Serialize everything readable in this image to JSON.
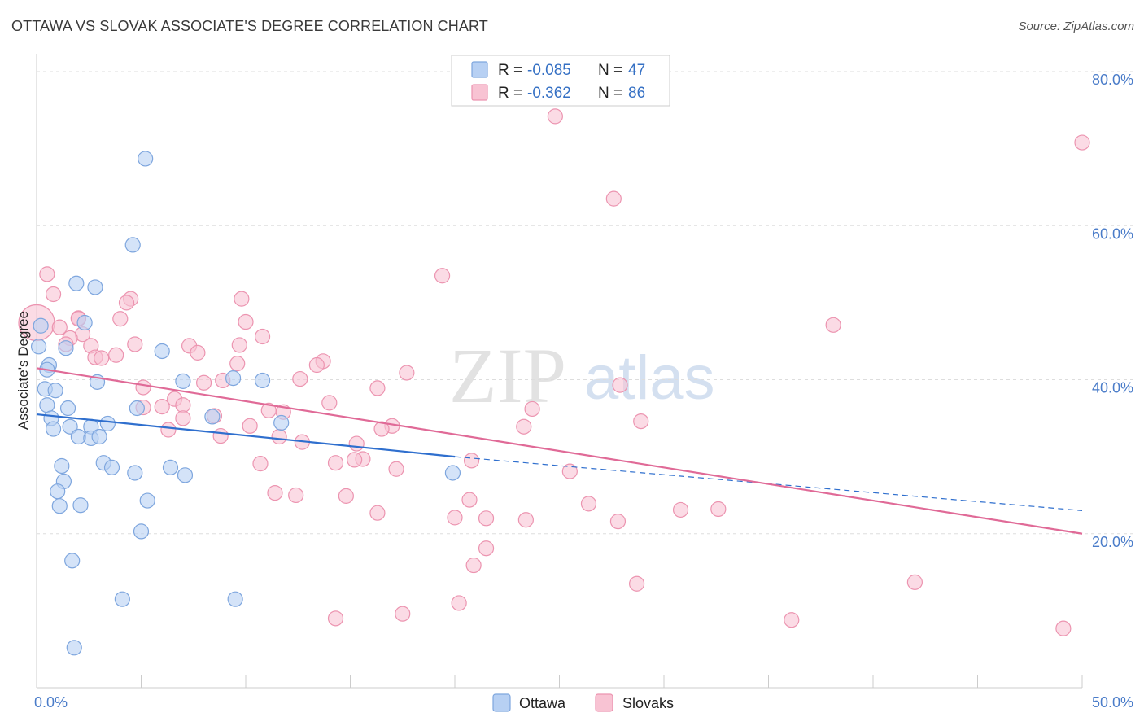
{
  "title": "OTTAWA VS SLOVAK ASSOCIATE'S DEGREE CORRELATION CHART",
  "source": "Source: ZipAtlas.com",
  "watermark": {
    "zip": "ZIP",
    "atlas": "atlas"
  },
  "colors": {
    "ottawa_fill": "#b7d0f3",
    "ottawa_stroke": "#7ea6de",
    "ottawa_line": "#2f6fce",
    "slovak_fill": "#f8c3d3",
    "slovak_stroke": "#ec94b0",
    "slovak_line": "#e06a97",
    "tick_blue": "#4a7cc9",
    "grid": "#dddddd"
  },
  "legend": {
    "rows": [
      {
        "r_label": "R =",
        "r_value": "-0.085",
        "n_label": "N =",
        "n_value": "47"
      },
      {
        "r_label": "R =",
        "r_value": "-0.362",
        "n_label": "N =",
        "n_value": "86"
      }
    ]
  },
  "chart_data": {
    "type": "scatter",
    "title": "OTTAWA VS SLOVAK ASSOCIATE'S DEGREE CORRELATION CHART",
    "xlabel": "",
    "ylabel": "Associate's Degree",
    "xlim": [
      0,
      50
    ],
    "ylim": [
      0,
      80
    ],
    "x_tick_labels": [
      "0.0%",
      "50.0%"
    ],
    "y_ticks": [
      20,
      40,
      60,
      80
    ],
    "y_tick_labels": [
      "20.0%",
      "40.0%",
      "60.0%",
      "80.0%"
    ],
    "grid": true,
    "legend_position": "bottom",
    "series": [
      {
        "name": "Ottawa",
        "R": -0.085,
        "N": 47,
        "trend": {
          "x0": 0,
          "y0": 35.5,
          "x1": 20,
          "y1": 30.0,
          "dashed_to_x": 50,
          "dashed_to_y": 23.0
        },
        "points": [
          [
            5.2,
            68.7
          ],
          [
            4.6,
            57.5
          ],
          [
            1.9,
            52.5
          ],
          [
            2.8,
            52.0
          ],
          [
            2.3,
            47.4
          ],
          [
            0.1,
            44.3
          ],
          [
            1.4,
            44.1
          ],
          [
            6.0,
            43.7
          ],
          [
            0.6,
            41.9
          ],
          [
            0.5,
            41.3
          ],
          [
            2.9,
            39.7
          ],
          [
            7.0,
            39.8
          ],
          [
            10.8,
            39.9
          ],
          [
            9.4,
            40.2
          ],
          [
            0.4,
            38.8
          ],
          [
            0.9,
            38.6
          ],
          [
            0.5,
            36.7
          ],
          [
            1.5,
            36.3
          ],
          [
            4.8,
            36.3
          ],
          [
            0.7,
            35.0
          ],
          [
            8.4,
            35.2
          ],
          [
            3.4,
            34.3
          ],
          [
            11.7,
            34.4
          ],
          [
            1.6,
            33.9
          ],
          [
            2.6,
            33.9
          ],
          [
            0.8,
            33.6
          ],
          [
            2.0,
            32.6
          ],
          [
            2.6,
            32.4
          ],
          [
            3.0,
            32.6
          ],
          [
            3.2,
            29.2
          ],
          [
            1.2,
            28.8
          ],
          [
            3.6,
            28.6
          ],
          [
            6.4,
            28.6
          ],
          [
            4.7,
            27.9
          ],
          [
            7.1,
            27.6
          ],
          [
            19.9,
            27.9
          ],
          [
            1.3,
            26.8
          ],
          [
            1.0,
            25.5
          ],
          [
            5.3,
            24.3
          ],
          [
            1.1,
            23.6
          ],
          [
            2.1,
            23.7
          ],
          [
            5.0,
            20.3
          ],
          [
            1.7,
            16.5
          ],
          [
            4.1,
            11.5
          ],
          [
            9.5,
            11.5
          ],
          [
            1.8,
            5.2
          ],
          [
            0.2,
            47.0
          ]
        ]
      },
      {
        "name": "Slovaks",
        "R": -0.362,
        "N": 86,
        "trend": {
          "x0": 0,
          "y0": 41.5,
          "x1": 50,
          "y1": 20.0
        },
        "points": [
          [
            24.8,
            74.2
          ],
          [
            50.0,
            70.8
          ],
          [
            27.6,
            63.5
          ],
          [
            19.4,
            53.5
          ],
          [
            0.5,
            53.7
          ],
          [
            0.8,
            51.1
          ],
          [
            4.5,
            50.5
          ],
          [
            4.3,
            50.0
          ],
          [
            2.0,
            48.0
          ],
          [
            4.0,
            47.9
          ],
          [
            10.0,
            47.5
          ],
          [
            38.1,
            47.1
          ],
          [
            0.0,
            47.4
          ],
          [
            1.1,
            46.8
          ],
          [
            2.2,
            45.9
          ],
          [
            1.6,
            45.4
          ],
          [
            10.8,
            45.6
          ],
          [
            1.4,
            44.6
          ],
          [
            2.6,
            44.4
          ],
          [
            4.7,
            44.6
          ],
          [
            7.3,
            44.4
          ],
          [
            9.7,
            44.5
          ],
          [
            7.7,
            43.5
          ],
          [
            2.8,
            42.9
          ],
          [
            3.1,
            42.8
          ],
          [
            3.8,
            43.2
          ],
          [
            13.7,
            42.4
          ],
          [
            9.6,
            42.1
          ],
          [
            13.4,
            41.9
          ],
          [
            17.7,
            40.9
          ],
          [
            8.9,
            39.9
          ],
          [
            12.6,
            40.1
          ],
          [
            8.0,
            39.6
          ],
          [
            16.3,
            38.9
          ],
          [
            5.1,
            39.0
          ],
          [
            27.9,
            39.3
          ],
          [
            6.6,
            37.5
          ],
          [
            5.1,
            36.4
          ],
          [
            6.0,
            36.5
          ],
          [
            7.0,
            36.7
          ],
          [
            14.0,
            37.0
          ],
          [
            23.7,
            36.2
          ],
          [
            11.1,
            36.0
          ],
          [
            11.8,
            35.8
          ],
          [
            8.5,
            35.3
          ],
          [
            7.0,
            35.0
          ],
          [
            28.9,
            34.6
          ],
          [
            17.0,
            34.0
          ],
          [
            16.5,
            33.6
          ],
          [
            10.2,
            34.0
          ],
          [
            6.3,
            33.5
          ],
          [
            23.3,
            33.9
          ],
          [
            8.8,
            32.7
          ],
          [
            11.6,
            32.6
          ],
          [
            12.7,
            31.9
          ],
          [
            15.3,
            31.7
          ],
          [
            15.6,
            29.7
          ],
          [
            14.3,
            29.2
          ],
          [
            15.2,
            29.6
          ],
          [
            20.8,
            29.5
          ],
          [
            10.7,
            29.1
          ],
          [
            17.2,
            28.4
          ],
          [
            25.5,
            28.1
          ],
          [
            11.4,
            25.3
          ],
          [
            12.4,
            25.0
          ],
          [
            14.8,
            24.9
          ],
          [
            20.7,
            24.4
          ],
          [
            26.4,
            23.9
          ],
          [
            30.8,
            23.1
          ],
          [
            32.6,
            23.2
          ],
          [
            16.3,
            22.7
          ],
          [
            20.0,
            22.1
          ],
          [
            21.5,
            22.0
          ],
          [
            23.4,
            21.8
          ],
          [
            27.8,
            21.6
          ],
          [
            21.5,
            18.1
          ],
          [
            20.9,
            15.9
          ],
          [
            28.7,
            13.5
          ],
          [
            42.0,
            13.7
          ],
          [
            20.2,
            11.0
          ],
          [
            17.5,
            9.6
          ],
          [
            14.3,
            9.0
          ],
          [
            36.1,
            8.8
          ],
          [
            49.1,
            7.7
          ],
          [
            2.0,
            47.9
          ],
          [
            9.8,
            50.5
          ]
        ]
      }
    ]
  },
  "bottom_legend": [
    {
      "label": "Ottawa"
    },
    {
      "label": "Slovaks"
    }
  ]
}
